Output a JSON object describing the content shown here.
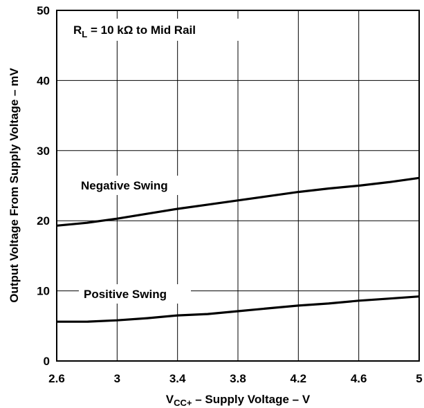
{
  "chart_data": {
    "type": "line",
    "xlabel": {
      "main": "V",
      "sub": "CC+",
      "rest": " – Supply Voltage – V"
    },
    "ylabel": "Output Voltage From Supply Voltage – mV",
    "xlim": [
      2.6,
      5
    ],
    "ylim": [
      0,
      50
    ],
    "xticks": [
      2.6,
      3,
      3.4,
      3.8,
      4.2,
      4.6,
      5
    ],
    "xtick_labels": [
      "2.6",
      "3",
      "3.4",
      "3.8",
      "4.2",
      "4.6",
      "5"
    ],
    "yticks": [
      0,
      10,
      20,
      30,
      40,
      50
    ],
    "ytick_labels": [
      "0",
      "10",
      "20",
      "30",
      "40",
      "50"
    ],
    "grid": true,
    "condition": {
      "main": "R",
      "sub": "L",
      "rest": " = 10 kΩ to Mid Rail"
    },
    "series": [
      {
        "name": "Negative Swing",
        "x": [
          2.6,
          2.8,
          3.0,
          3.2,
          3.4,
          3.6,
          3.8,
          4.0,
          4.2,
          4.4,
          4.6,
          4.8,
          5.0
        ],
        "y": [
          19.3,
          19.7,
          20.3,
          21.0,
          21.7,
          22.3,
          22.9,
          23.5,
          24.1,
          24.6,
          25.0,
          25.5,
          26.1
        ]
      },
      {
        "name": "Positive Swing",
        "x": [
          2.6,
          2.8,
          3.0,
          3.2,
          3.4,
          3.6,
          3.8,
          4.0,
          4.2,
          4.4,
          4.6,
          4.8,
          5.0
        ],
        "y": [
          5.6,
          5.6,
          5.8,
          6.1,
          6.5,
          6.7,
          7.1,
          7.5,
          7.9,
          8.2,
          8.6,
          8.9,
          9.2
        ]
      }
    ]
  }
}
